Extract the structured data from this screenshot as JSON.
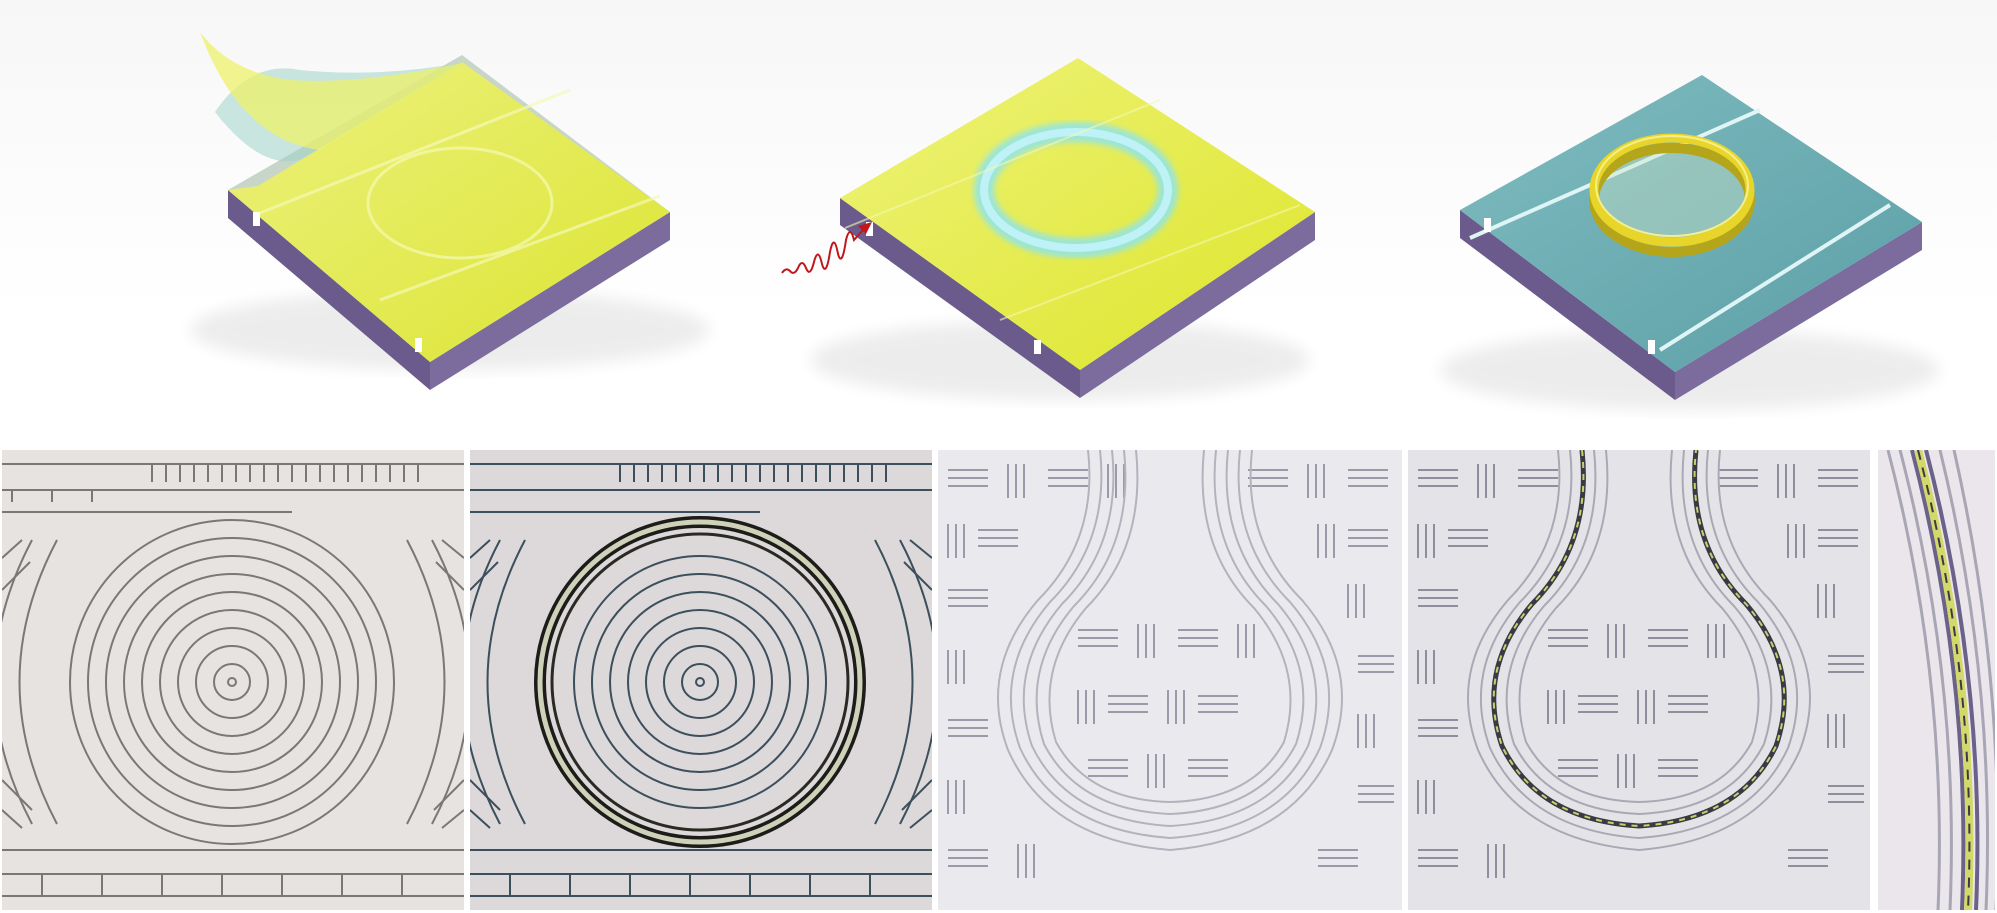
{
  "figure": {
    "schematics": [
      {
        "id": "peel",
        "icon": "film-peeling-icon"
      },
      {
        "id": "illuminate",
        "icon": "laser-pulse-icon"
      },
      {
        "id": "ring",
        "icon": "ring-resonator-icon"
      }
    ],
    "micrographs": [
      {
        "id": "concentric-before",
        "pattern": "concentric-rings"
      },
      {
        "id": "concentric-after",
        "pattern": "concentric-rings-with-ring"
      },
      {
        "id": "teardrop-before",
        "pattern": "teardrop-waveguides"
      },
      {
        "id": "teardrop-after",
        "pattern": "teardrop-waveguides-with-ring"
      },
      {
        "id": "zoom",
        "pattern": "zoomed-ring-edge"
      }
    ],
    "colors": {
      "film": "#e6ee3a",
      "substrate": "#6e5f92",
      "waveguide_glow": "#8ee4ee",
      "cover_teal": "#5fa7ad",
      "pulse": "#c0171b",
      "ring_gold": "#e7d52a"
    }
  }
}
